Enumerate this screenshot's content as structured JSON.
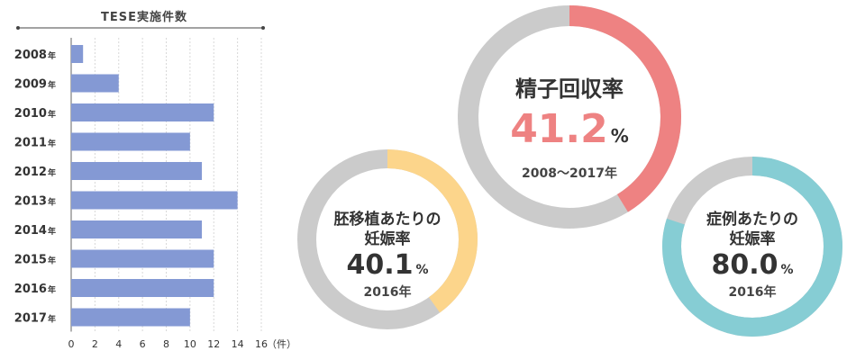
{
  "colors": {
    "bar": "#8499d4",
    "ring_bg": "#cbcbcb",
    "pink": "#ee8282",
    "yellow": "#fcd58b",
    "teal": "#86cdd4",
    "text": "#333333"
  },
  "chart_data": [
    {
      "type": "bar",
      "orientation": "horizontal",
      "title": "TESE実施件数",
      "categories": [
        "2008年",
        "2009年",
        "2010年",
        "2011年",
        "2012年",
        "2013年",
        "2014年",
        "2015年",
        "2016年",
        "2017年"
      ],
      "category_years": [
        "2008",
        "2009",
        "2010",
        "2011",
        "2012",
        "2013",
        "2014",
        "2015",
        "2016",
        "2017"
      ],
      "category_suffix": "年",
      "values": [
        1,
        4,
        12,
        10,
        11,
        14,
        11,
        12,
        12,
        10
      ],
      "xticks": [
        "0",
        "2",
        "4",
        "6",
        "8",
        "10",
        "12",
        "14",
        "16"
      ],
      "xlim": [
        0,
        16
      ],
      "xunit": "（件）",
      "grid": true
    },
    {
      "type": "pie",
      "variant": "donut",
      "title": "精子回収率",
      "value": 41.2,
      "value_label": "41.2",
      "unit": "%",
      "note": "2008〜2017年",
      "color": "pink"
    },
    {
      "type": "pie",
      "variant": "donut",
      "title_lines": [
        "胚移植あたりの",
        "妊娠率"
      ],
      "value": 40.1,
      "value_label": "40.1",
      "unit": "%",
      "note": "2016年",
      "color": "yellow"
    },
    {
      "type": "pie",
      "variant": "donut",
      "title_lines": [
        "症例あたりの",
        "妊娠率"
      ],
      "value": 80.0,
      "value_label": "80.0",
      "unit": "%",
      "note": "2016年",
      "color": "teal"
    }
  ]
}
